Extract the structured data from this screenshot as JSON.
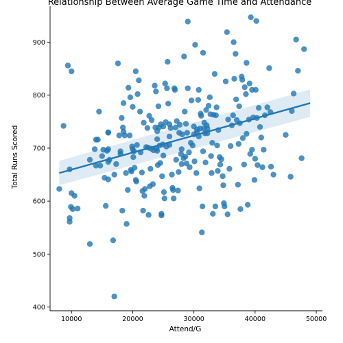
{
  "chart_data": {
    "type": "scatter",
    "title": "Relationship Between Average Game Time and Attendance",
    "xlabel": "Attend/G",
    "ylabel": "Total Runs Scored",
    "xlim": [
      6500,
      51000
    ],
    "ylim": [
      393,
      968
    ],
    "xticks": [
      10000,
      20000,
      30000,
      40000,
      50000
    ],
    "yticks": [
      400,
      500,
      600,
      700,
      800,
      900
    ],
    "grid": false,
    "legend": "none",
    "colors": {
      "points": "#1f77b4",
      "line": "#1f77b4",
      "band": "#1f77b4"
    },
    "regression": {
      "x": [
        8000,
        49000
      ],
      "y": [
        653,
        785
      ],
      "ci_lower": [
        630,
        759
      ],
      "ci_upper": [
        676,
        811
      ]
    },
    "points": [
      [
        8000,
        623
      ],
      [
        8700,
        742
      ],
      [
        9400,
        856
      ],
      [
        9700,
        660
      ],
      [
        9700,
        568
      ],
      [
        9700,
        561
      ],
      [
        9900,
        589
      ],
      [
        10000,
        845
      ],
      [
        10000,
        615
      ],
      [
        10200,
        585
      ],
      [
        10500,
        610
      ],
      [
        11000,
        586
      ],
      [
        13000,
        519
      ],
      [
        13000,
        678
      ],
      [
        13800,
        698
      ],
      [
        14000,
        716
      ],
      [
        14000,
        667
      ],
      [
        14300,
        716
      ],
      [
        14500,
        769
      ],
      [
        14700,
        667
      ],
      [
        15000,
        685
      ],
      [
        15200,
        697
      ],
      [
        15400,
        644
      ],
      [
        15600,
        591
      ],
      [
        15800,
        695
      ],
      [
        16000,
        730
      ],
      [
        16000,
        729
      ],
      [
        16000,
        698
      ],
      [
        16000,
        641
      ],
      [
        16000,
        674
      ],
      [
        16200,
        678
      ],
      [
        16800,
        526
      ],
      [
        17000,
        420
      ],
      [
        17000,
        650
      ],
      [
        17300,
        670
      ],
      [
        17600,
        860
      ],
      [
        17800,
        724
      ],
      [
        18000,
        694
      ],
      [
        18000,
        689
      ],
      [
        18200,
        757
      ],
      [
        18300,
        582
      ],
      [
        18400,
        739
      ],
      [
        18500,
        785
      ],
      [
        18500,
        731
      ],
      [
        18700,
        724
      ],
      [
        18900,
        653
      ],
      [
        19000,
        557
      ],
      [
        19200,
        621
      ],
      [
        19300,
        814
      ],
      [
        19500,
        724
      ],
      [
        19600,
        796
      ],
      [
        19700,
        659
      ],
      [
        19800,
        656
      ],
      [
        19900,
        703
      ],
      [
        20000,
        778
      ],
      [
        20000,
        698
      ],
      [
        20100,
        683
      ],
      [
        20200,
        694
      ],
      [
        20300,
        663
      ],
      [
        20500,
        845
      ],
      [
        20500,
        640
      ],
      [
        20600,
        637
      ],
      [
        20700,
        706
      ],
      [
        20800,
        802
      ],
      [
        21000,
        828
      ],
      [
        21200,
        769
      ],
      [
        21300,
        692
      ],
      [
        21500,
        654
      ],
      [
        21600,
        619
      ],
      [
        21700,
        582
      ],
      [
        21800,
        748
      ],
      [
        21900,
        610
      ],
      [
        22000,
        623
      ],
      [
        22200,
        702
      ],
      [
        22400,
        738
      ],
      [
        22500,
        701
      ],
      [
        22600,
        574
      ],
      [
        22700,
        761
      ],
      [
        22800,
        628
      ],
      [
        22900,
        661
      ],
      [
        23000,
        699
      ],
      [
        23100,
        753
      ],
      [
        23300,
        632
      ],
      [
        23400,
        696
      ],
      [
        23600,
        818
      ],
      [
        23700,
        739
      ],
      [
        23800,
        807
      ],
      [
        23900,
        699
      ],
      [
        24000,
        732
      ],
      [
        24000,
        717
      ],
      [
        24100,
        668
      ],
      [
        24200,
        779
      ],
      [
        24300,
        739
      ],
      [
        24400,
        705
      ],
      [
        24500,
        672
      ],
      [
        24600,
        745
      ],
      [
        24700,
        576
      ],
      [
        24700,
        573
      ],
      [
        24800,
        647
      ],
      [
        24900,
        707
      ],
      [
        25000,
        686
      ],
      [
        25000,
        741
      ],
      [
        25100,
        617
      ],
      [
        25200,
        605
      ],
      [
        25300,
        822
      ],
      [
        25400,
        749
      ],
      [
        25500,
        703
      ],
      [
        25600,
        813
      ],
      [
        25700,
        863
      ],
      [
        25800,
        784
      ],
      [
        26000,
        706
      ],
      [
        26000,
        722
      ],
      [
        26200,
        738
      ],
      [
        26400,
        650
      ],
      [
        26500,
        625
      ],
      [
        26600,
        621
      ],
      [
        26700,
        605
      ],
      [
        26800,
        813
      ],
      [
        26900,
        810
      ],
      [
        27000,
        739
      ],
      [
        27100,
        678
      ],
      [
        27200,
        751
      ],
      [
        27400,
        620
      ],
      [
        27500,
        655
      ],
      [
        27600,
        729
      ],
      [
        27700,
        744
      ],
      [
        27900,
        689
      ],
      [
        28000,
        670
      ],
      [
        28000,
        698
      ],
      [
        28100,
        726
      ],
      [
        28300,
        681
      ],
      [
        28400,
        873
      ],
      [
        28500,
        769
      ],
      [
        28600,
        684
      ],
      [
        28700,
        746
      ],
      [
        28800,
        671
      ],
      [
        28900,
        729
      ],
      [
        29000,
        939
      ],
      [
        29200,
        692
      ],
      [
        29300,
        664
      ],
      [
        29500,
        710
      ],
      [
        29600,
        790
      ],
      [
        29800,
        705
      ],
      [
        30000,
        726
      ],
      [
        30000,
        741
      ],
      [
        30100,
        675
      ],
      [
        30200,
        895
      ],
      [
        30400,
        653
      ],
      [
        30500,
        730
      ],
      [
        30700,
        791
      ],
      [
        30800,
        722
      ],
      [
        30900,
        624
      ],
      [
        31000,
        737
      ],
      [
        31100,
        765
      ],
      [
        31200,
        761
      ],
      [
        31300,
        541
      ],
      [
        31400,
        590
      ],
      [
        31500,
        694
      ],
      [
        31600,
        737
      ],
      [
        31700,
        748
      ],
      [
        31800,
        728
      ],
      [
        31900,
        673
      ],
      [
        32000,
        772
      ],
      [
        32100,
        743
      ],
      [
        32200,
        728
      ],
      [
        32400,
        780
      ],
      [
        32600,
        796
      ],
      [
        32700,
        764
      ],
      [
        32800,
        685
      ],
      [
        32900,
        653
      ],
      [
        33000,
        710
      ],
      [
        33100,
        576
      ],
      [
        33200,
        763
      ],
      [
        33400,
        840
      ],
      [
        33600,
        762
      ],
      [
        33700,
        777
      ],
      [
        33800,
        705
      ],
      [
        33900,
        657
      ],
      [
        34000,
        734
      ],
      [
        34200,
        683
      ],
      [
        34300,
        669
      ],
      [
        34500,
        679
      ],
      [
        34700,
        647
      ],
      [
        34900,
        596
      ],
      [
        35000,
        590
      ],
      [
        35200,
        826
      ],
      [
        35400,
        919
      ],
      [
        35600,
        754
      ],
      [
        35800,
        661
      ],
      [
        36000,
        704
      ],
      [
        36200,
        743
      ],
      [
        36400,
        762
      ],
      [
        36500,
        900
      ],
      [
        36600,
        831
      ],
      [
        36800,
        878
      ],
      [
        36900,
        792
      ],
      [
        37000,
        753
      ],
      [
        37200,
        631
      ],
      [
        37300,
        708
      ],
      [
        37400,
        779
      ],
      [
        37500,
        747
      ],
      [
        37600,
        585
      ],
      [
        37800,
        835
      ],
      [
        37900,
        829
      ],
      [
        38000,
        719
      ],
      [
        38200,
        669
      ],
      [
        38300,
        815
      ],
      [
        38500,
        802
      ],
      [
        38600,
        727
      ],
      [
        38800,
        593
      ],
      [
        39000,
        754
      ],
      [
        39100,
        822
      ],
      [
        39200,
        689
      ],
      [
        39300,
        947
      ],
      [
        39500,
        697
      ],
      [
        39700,
        758
      ],
      [
        39900,
        640
      ],
      [
        40000,
        680
      ],
      [
        40200,
        940
      ],
      [
        40300,
        757
      ],
      [
        40400,
        668
      ],
      [
        40600,
        776
      ],
      [
        40800,
        740
      ],
      [
        41000,
        720
      ],
      [
        41200,
        664
      ],
      [
        41400,
        697
      ],
      [
        41600,
        762
      ],
      [
        42000,
        777
      ],
      [
        42300,
        851
      ],
      [
        42600,
        665
      ],
      [
        43000,
        650
      ],
      [
        45000,
        725
      ],
      [
        45800,
        646
      ],
      [
        46000,
        770
      ],
      [
        46300,
        803
      ],
      [
        46700,
        905
      ],
      [
        47000,
        846
      ],
      [
        47600,
        681
      ],
      [
        48000,
        887
      ],
      [
        38600,
        861
      ],
      [
        39500,
        810
      ],
      [
        40100,
        810
      ],
      [
        42500,
        768
      ],
      [
        32200,
        737
      ],
      [
        29000,
        813
      ],
      [
        24000,
        695
      ],
      [
        26000,
        745
      ],
      [
        30500,
        735
      ],
      [
        30800,
        810
      ],
      [
        31500,
        880
      ],
      [
        33500,
        590
      ],
      [
        34800,
        630
      ],
      [
        35500,
        575
      ]
    ]
  }
}
